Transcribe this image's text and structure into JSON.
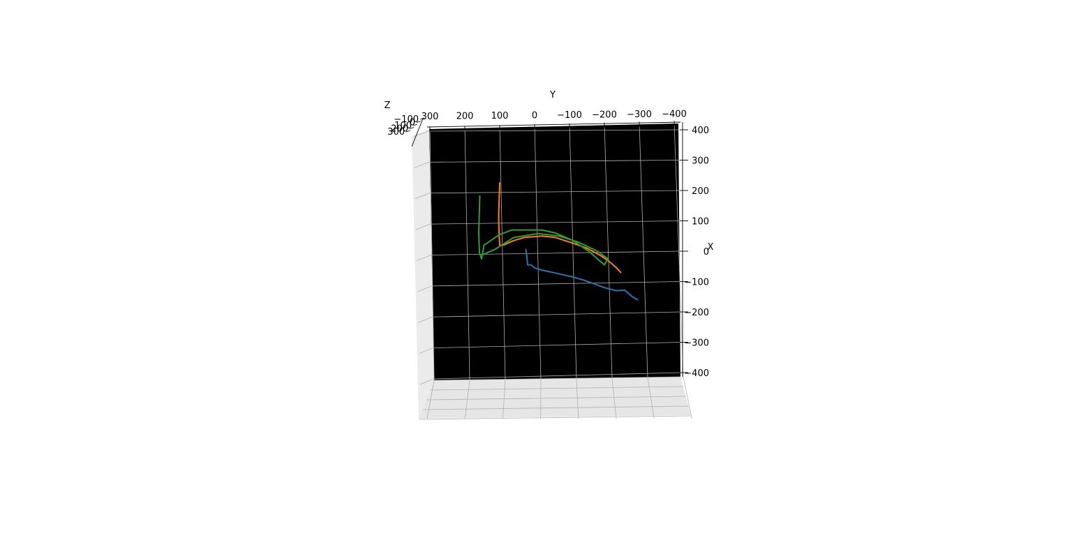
{
  "chart_data": {
    "type": "line",
    "projection": "3d",
    "xlabel": "X",
    "ylabel": "Y",
    "zlabel": "Z",
    "x_ticks": [
      "400",
      "300",
      "200",
      "100",
      "0",
      "−100",
      "−200",
      "−300",
      "−400"
    ],
    "y_ticks": [
      "300",
      "200",
      "100",
      "0",
      "−100",
      "−200",
      "−300",
      "−400"
    ],
    "z_ticks": [
      "−100",
      "0",
      "100",
      "200",
      "300"
    ],
    "grid": true,
    "colors": {
      "pane": "#f2f2f2",
      "grid": "#b0b0b0",
      "series_1": "#1f77b4",
      "series_2": "#ff7f0e",
      "series_3": "#2ca02c"
    },
    "series": [
      {
        "color": "#1f77b4",
        "points": [
          [
            5,
            25
          ],
          [
            -20,
            22
          ],
          [
            -45,
            20
          ],
          [
            -45,
            10
          ],
          [
            -55,
            0
          ],
          [
            -62,
            -20
          ],
          [
            -72,
            -60
          ],
          [
            -85,
            -110
          ],
          [
            -95,
            -140
          ],
          [
            -105,
            -165
          ],
          [
            -120,
            -200
          ],
          [
            -130,
            -235
          ],
          [
            -128,
            -258
          ],
          [
            -150,
            -280
          ],
          [
            -160,
            -295
          ]
        ]
      },
      {
        "color": "#ff7f0e",
        "points": [
          [
            225,
            100
          ],
          [
            120,
            103
          ],
          [
            60,
            102
          ],
          [
            20,
            100
          ],
          [
            20,
            90
          ],
          [
            35,
            60
          ],
          [
            45,
            30
          ],
          [
            50,
            -20
          ],
          [
            45,
            -60
          ],
          [
            30,
            -100
          ],
          [
            10,
            -150
          ],
          [
            -15,
            -190
          ],
          [
            -35,
            -215
          ],
          [
            -55,
            -235
          ],
          [
            -70,
            -247
          ]
        ]
      },
      {
        "color": "#2ca02c",
        "points": [
          [
            182,
            157
          ],
          [
            60,
            160
          ],
          [
            -5,
            158
          ],
          [
            -25,
            152
          ],
          [
            20,
            145
          ],
          [
            55,
            100
          ],
          [
            70,
            65
          ],
          [
            70,
            30
          ],
          [
            70,
            -20
          ],
          [
            60,
            -60
          ],
          [
            35,
            -110
          ],
          [
            0,
            -155
          ],
          [
            -30,
            -185
          ],
          [
            -45,
            -200
          ],
          [
            -25,
            -210
          ],
          [
            0,
            -180
          ],
          [
            30,
            -125
          ],
          [
            50,
            -70
          ],
          [
            58,
            -10
          ],
          [
            45,
            60
          ],
          [
            5,
            115
          ],
          [
            -12,
            150
          ]
        ]
      }
    ]
  }
}
